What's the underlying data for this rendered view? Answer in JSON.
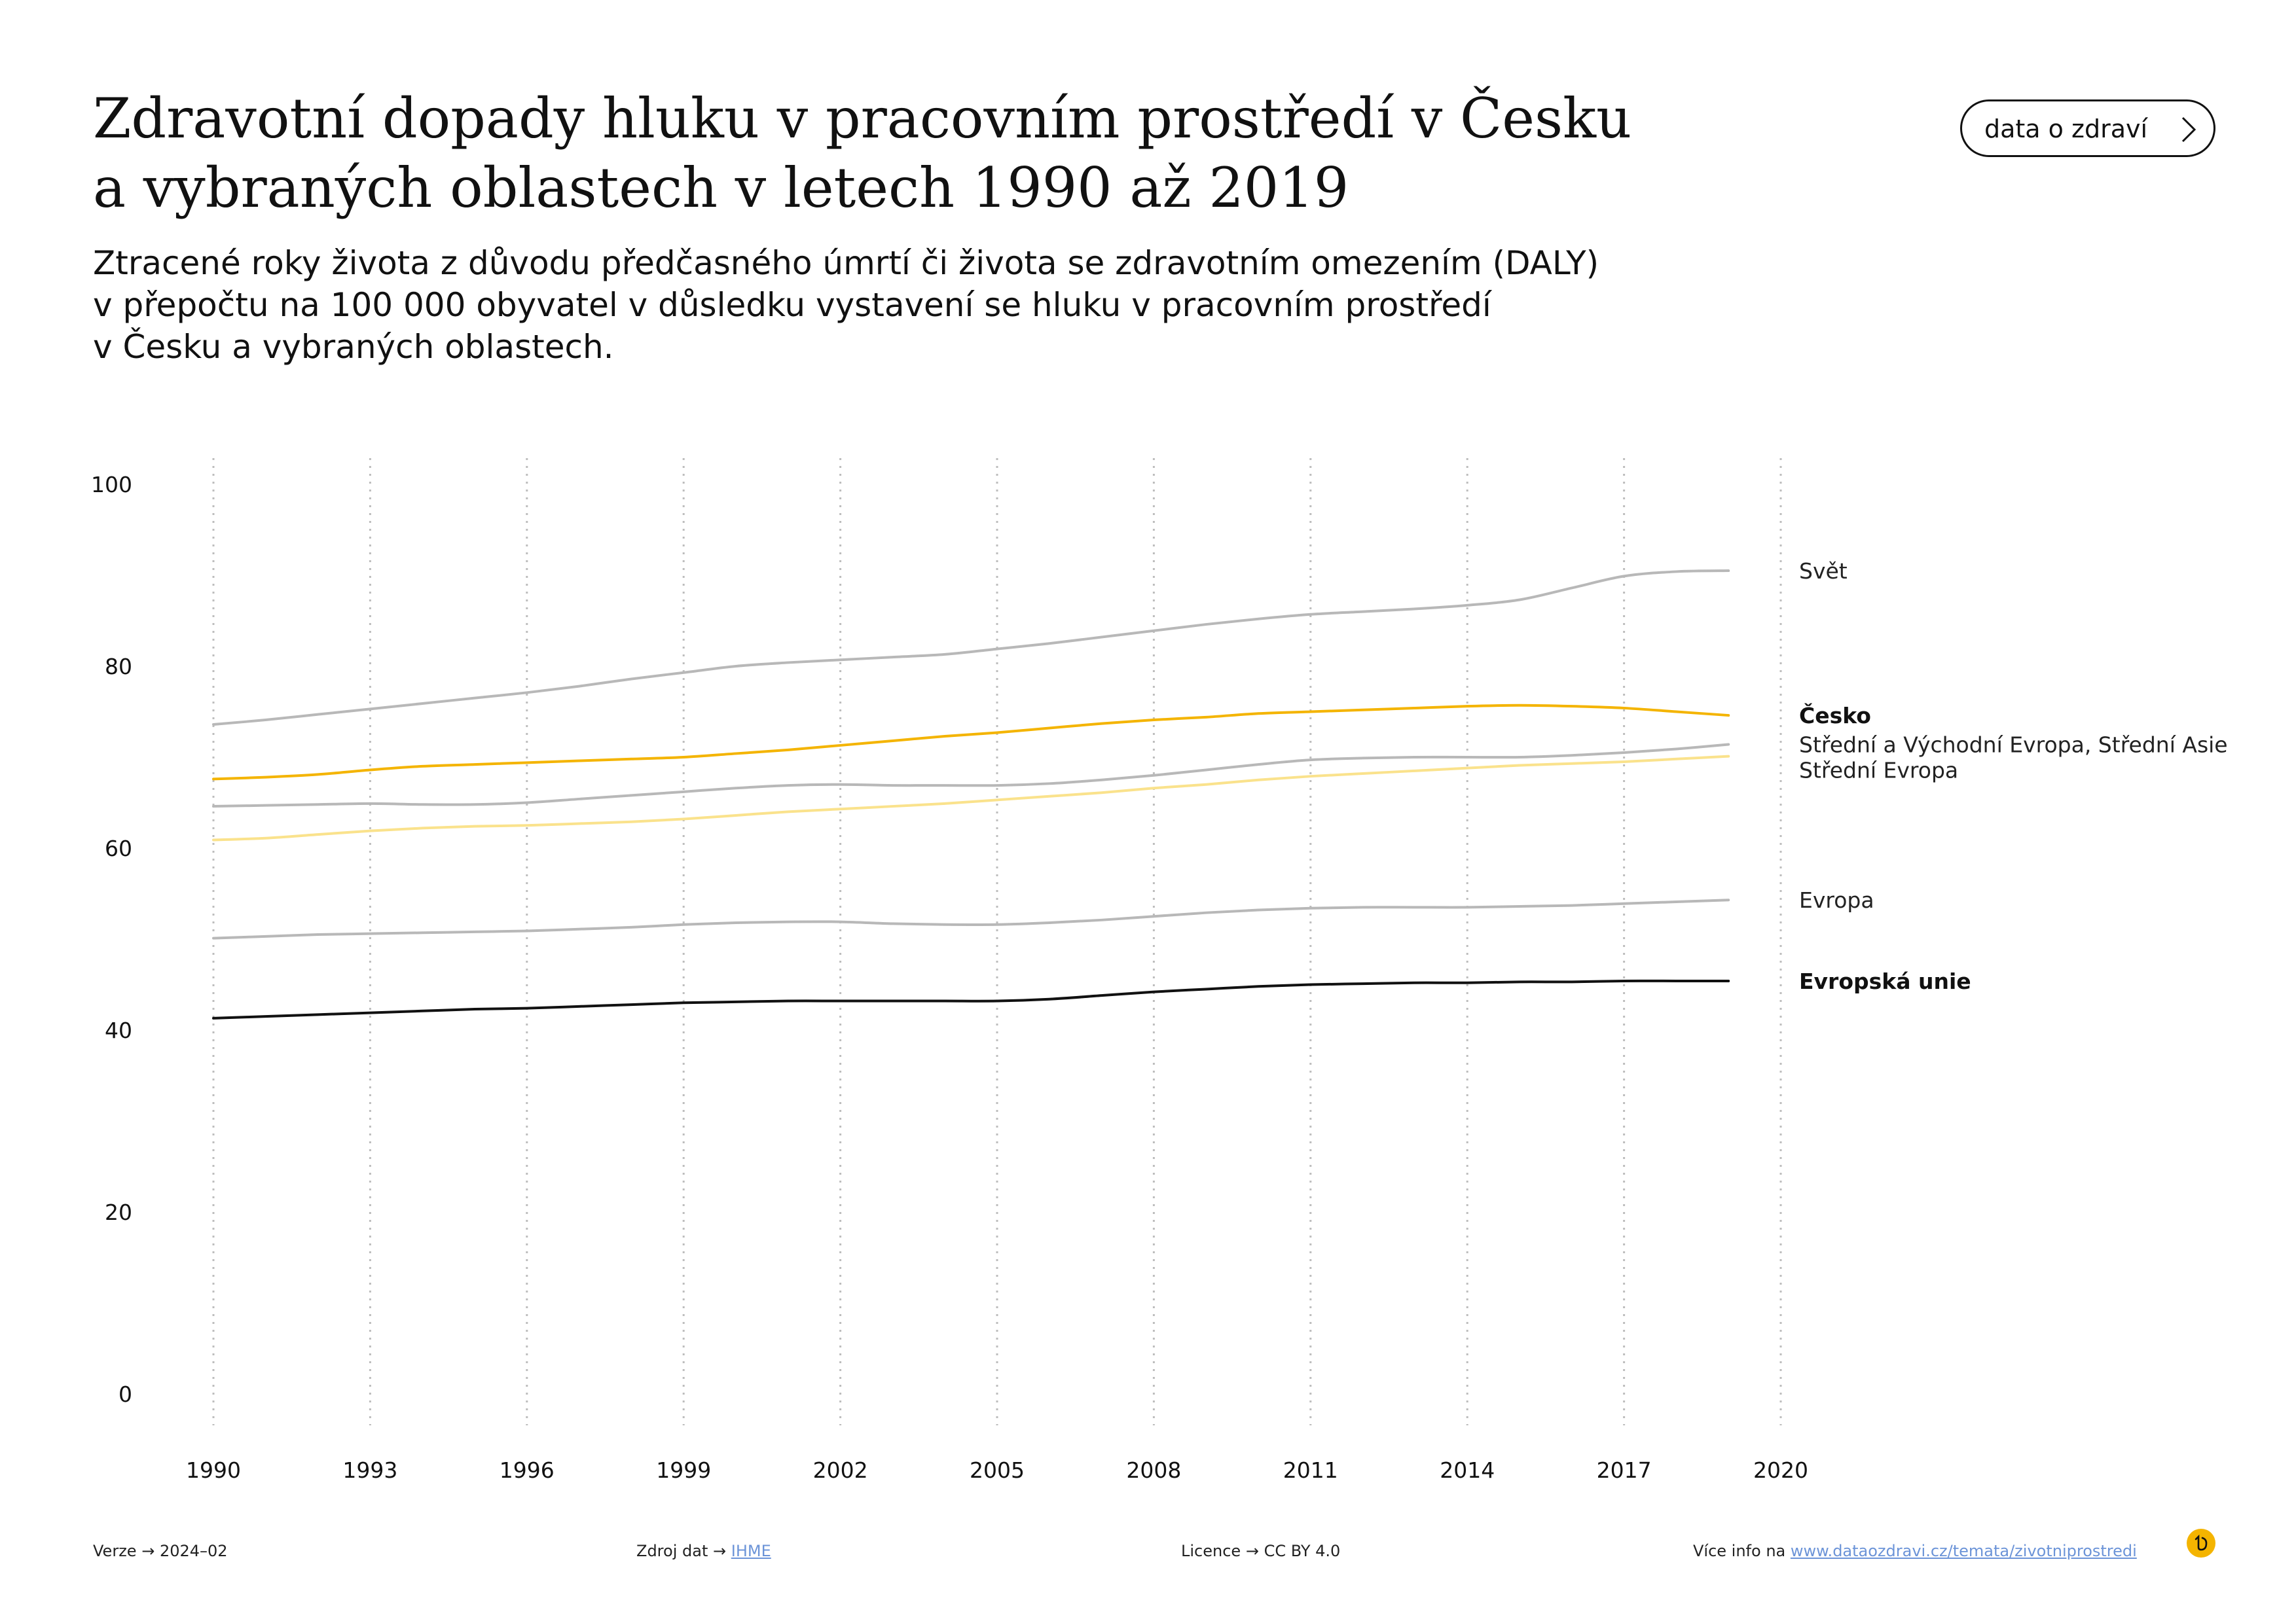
{
  "title": {
    "line1": "Zdravotní dopady hluku v pracovním prostředí v Česku",
    "line2": "a vybraných oblastech v letech 1990 až 2019"
  },
  "subtitle": {
    "line1": "Ztracené roky života z důvodu předčasného úmrtí či života se zdravotním omezením (DALY)",
    "line2": "v přepočtu na 100 000 obyvatel v důsledku vystavení se hluku v pracovním prostředí",
    "line3": "v Česku a vybraných oblastech."
  },
  "header_button": {
    "label": "data o zdraví",
    "icon": "chevron-right-icon"
  },
  "chart_data": {
    "type": "line",
    "xlim": [
      1990,
      2020
    ],
    "ylim": [
      0,
      100
    ],
    "x_ticks": [
      1990,
      1993,
      1996,
      1999,
      2002,
      2005,
      2008,
      2011,
      2014,
      2017,
      2020
    ],
    "y_ticks": [
      0,
      20,
      40,
      60,
      80,
      100
    ],
    "grid": "vertical-dotted",
    "legend": "right-of-lines",
    "x": [
      1990,
      1991,
      1992,
      1993,
      1994,
      1995,
      1996,
      1997,
      1998,
      1999,
      2000,
      2001,
      2002,
      2003,
      2004,
      2005,
      2006,
      2007,
      2008,
      2009,
      2010,
      2011,
      2012,
      2013,
      2014,
      2015,
      2016,
      2017,
      2018,
      2019
    ],
    "series": [
      {
        "name": "Svět",
        "color": "#b8b8b8",
        "bold": false,
        "values": [
          73.6,
          74.1,
          74.7,
          75.3,
          75.9,
          76.5,
          77.1,
          77.8,
          78.6,
          79.3,
          80.0,
          80.4,
          80.7,
          81.0,
          81.3,
          81.9,
          82.5,
          83.2,
          83.9,
          84.6,
          85.2,
          85.7,
          86.0,
          86.3,
          86.7,
          87.3,
          88.6,
          89.9,
          90.4,
          90.5
        ]
      },
      {
        "name": "Česko",
        "color": "#f4b400",
        "bold": true,
        "values": [
          67.6,
          67.8,
          68.1,
          68.6,
          69.0,
          69.2,
          69.4,
          69.6,
          69.8,
          70.0,
          70.4,
          70.8,
          71.3,
          71.8,
          72.3,
          72.7,
          73.2,
          73.7,
          74.1,
          74.4,
          74.8,
          75.0,
          75.2,
          75.4,
          75.6,
          75.7,
          75.6,
          75.4,
          75.0,
          74.6
        ]
      },
      {
        "name": "Střední a Východní Evropa, Střední Asie",
        "color": "#b8b8b8",
        "bold": false,
        "values": [
          64.6,
          64.7,
          64.8,
          64.9,
          64.8,
          64.8,
          65.0,
          65.4,
          65.8,
          66.2,
          66.6,
          66.9,
          67.0,
          66.9,
          66.9,
          66.9,
          67.1,
          67.5,
          68.0,
          68.6,
          69.2,
          69.7,
          69.9,
          70.0,
          70.0,
          70.0,
          70.2,
          70.5,
          70.9,
          71.4
        ]
      },
      {
        "name": "Střední Evropa",
        "color": "#fae28c",
        "bold": false,
        "values": [
          60.9,
          61.1,
          61.5,
          61.9,
          62.2,
          62.4,
          62.5,
          62.7,
          62.9,
          63.2,
          63.6,
          64.0,
          64.3,
          64.6,
          64.9,
          65.3,
          65.7,
          66.1,
          66.6,
          67.0,
          67.5,
          67.9,
          68.2,
          68.5,
          68.8,
          69.1,
          69.3,
          69.5,
          69.8,
          70.1
        ]
      },
      {
        "name": "Evropa",
        "color": "#b8b8b8",
        "bold": false,
        "values": [
          50.1,
          50.3,
          50.5,
          50.6,
          50.7,
          50.8,
          50.9,
          51.1,
          51.3,
          51.6,
          51.8,
          51.9,
          51.9,
          51.7,
          51.6,
          51.6,
          51.8,
          52.1,
          52.5,
          52.9,
          53.2,
          53.4,
          53.5,
          53.5,
          53.5,
          53.6,
          53.7,
          53.9,
          54.1,
          54.3
        ]
      },
      {
        "name": "Evropská unie",
        "color": "#111111",
        "bold": true,
        "values": [
          41.3,
          41.5,
          41.7,
          41.9,
          42.1,
          42.3,
          42.4,
          42.6,
          42.8,
          43.0,
          43.1,
          43.2,
          43.2,
          43.2,
          43.2,
          43.2,
          43.4,
          43.8,
          44.2,
          44.5,
          44.8,
          45.0,
          45.1,
          45.2,
          45.2,
          45.3,
          45.3,
          45.4,
          45.4,
          45.4
        ]
      }
    ]
  },
  "footer": {
    "version_label": "Verze",
    "version_value": "2024–02",
    "source_label": "Zdroj dat",
    "source_value": "IHME",
    "license_label": "Licence",
    "license_value": "CC BY 4.0",
    "more_info_label": "Více info na",
    "more_info_link": "www.dataozdravi.cz/temata/zivotniprostredi",
    "arrow": "→",
    "logo_icon": "dataozdravi-logo-icon"
  }
}
